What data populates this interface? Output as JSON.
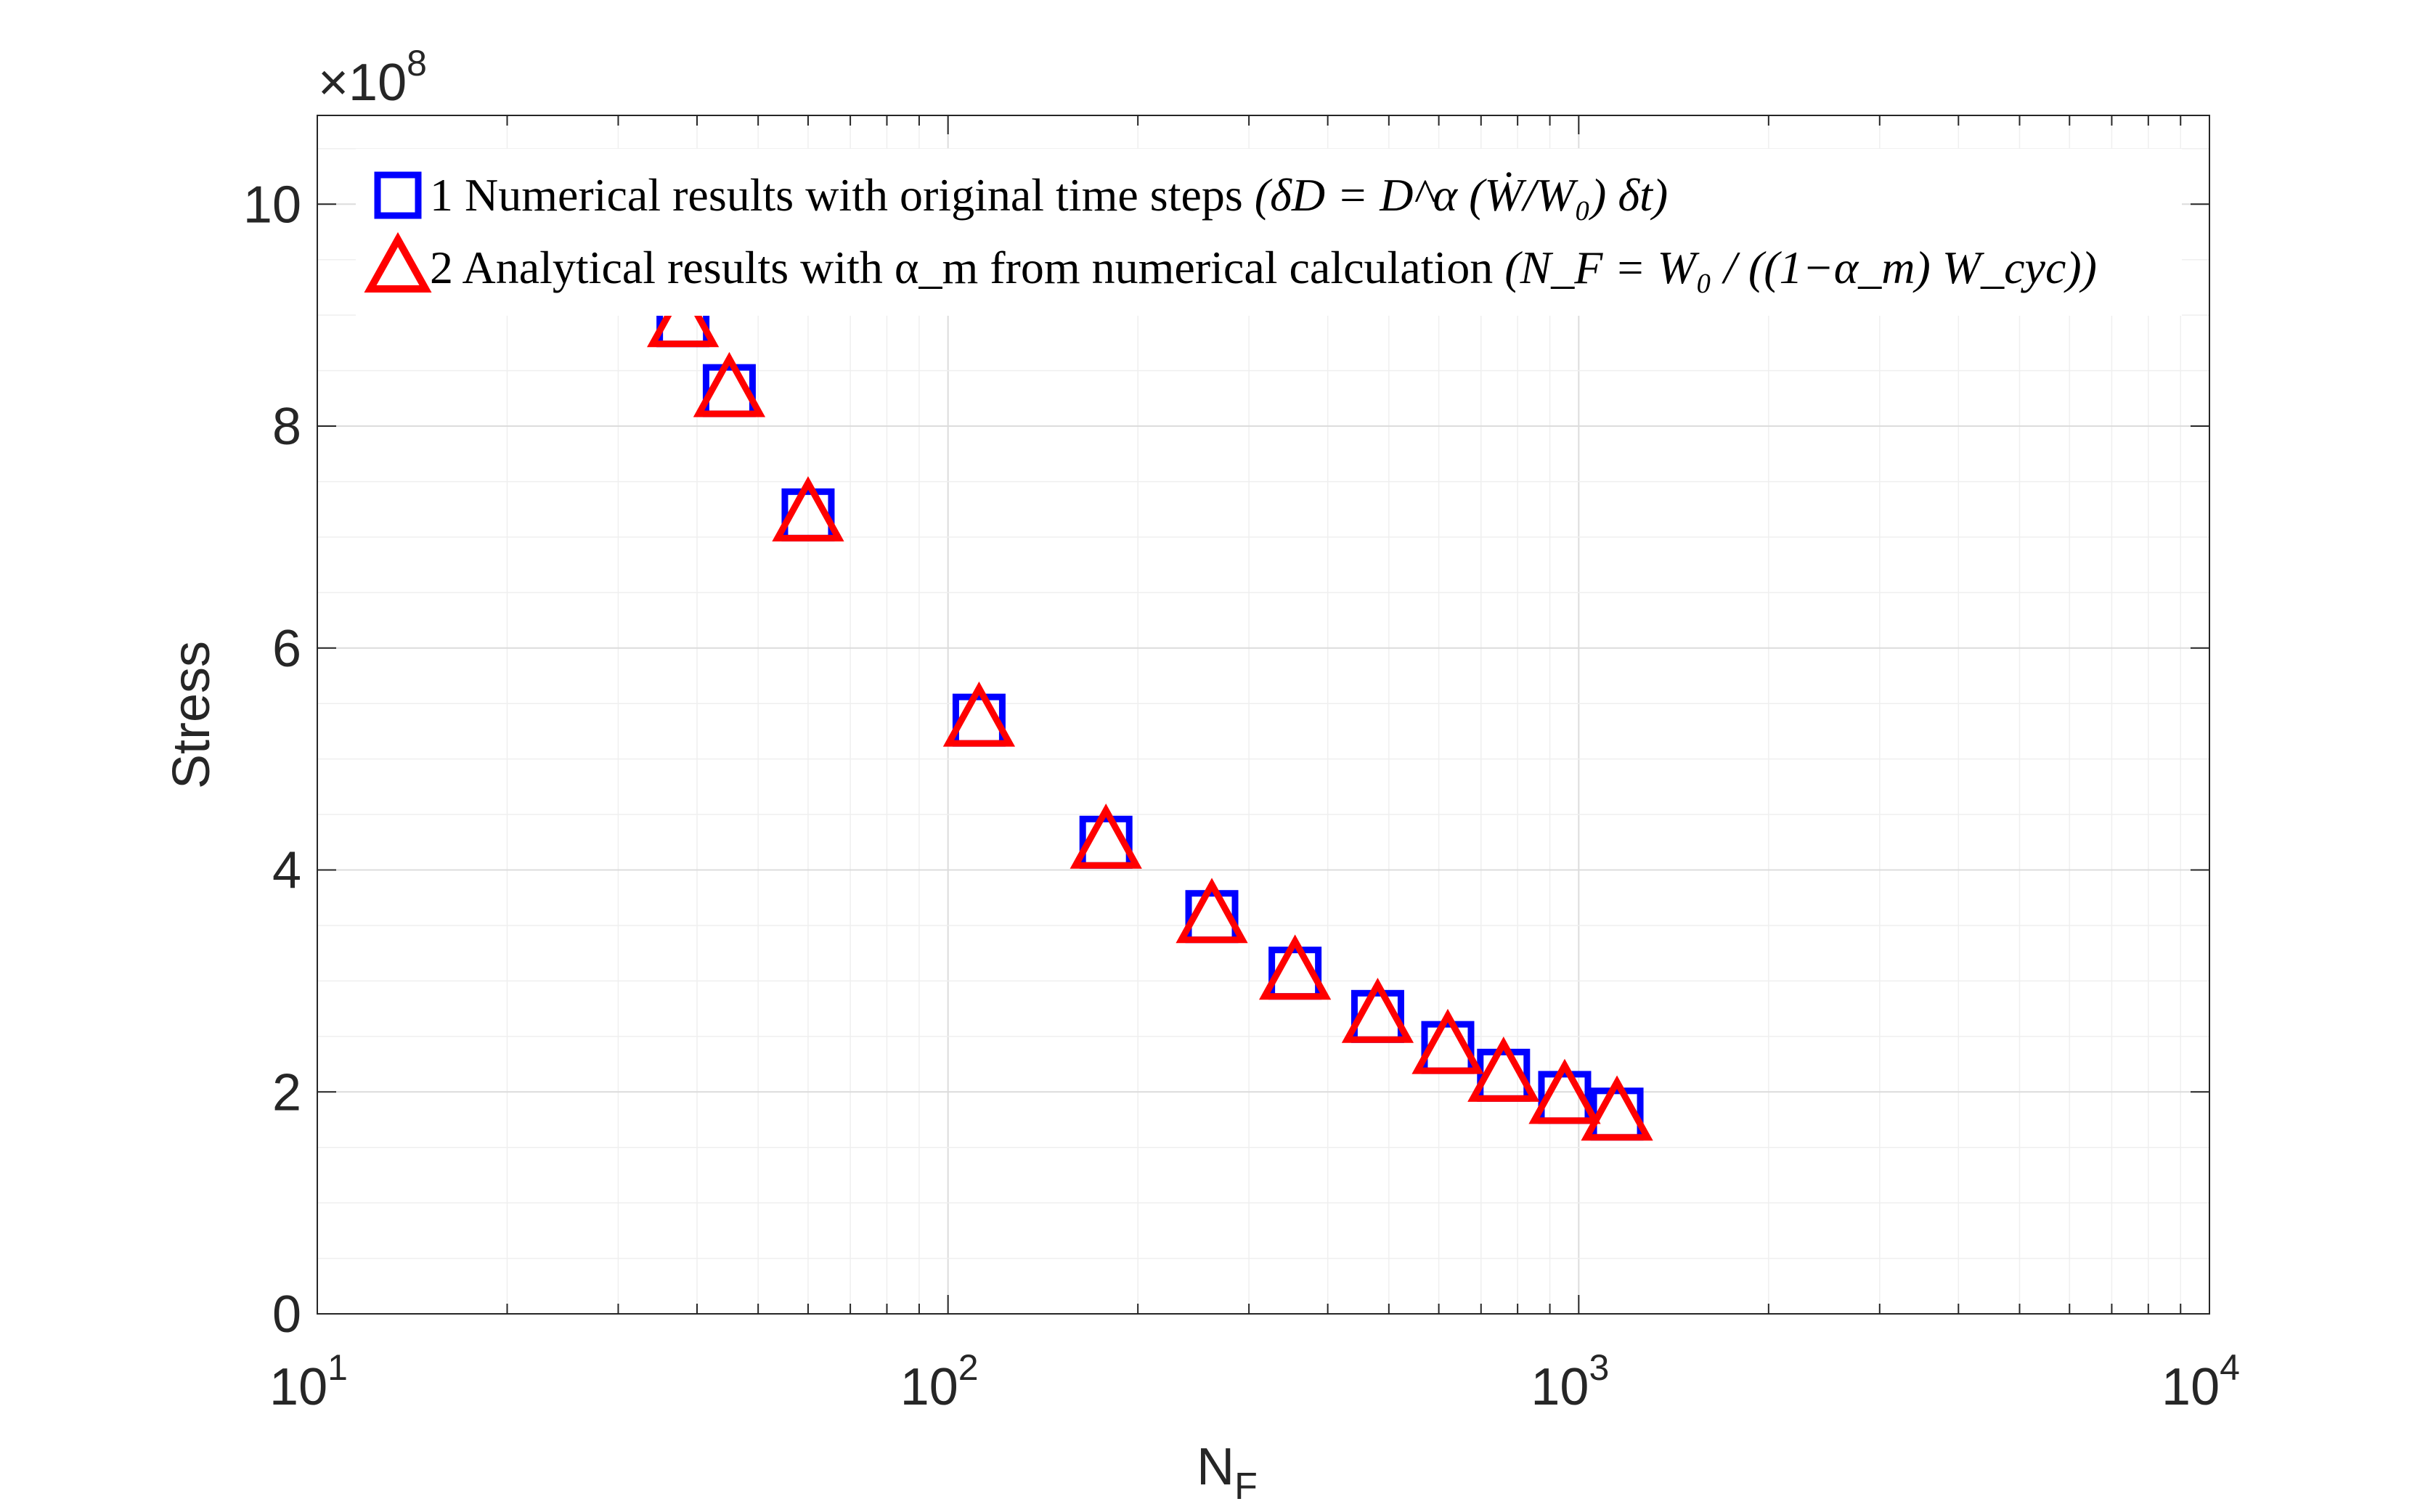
{
  "chart_data": {
    "type": "scatter",
    "xscale": "log",
    "xlabel_main": "N",
    "xlabel_sub": "F",
    "ylabel": "Stress",
    "xlim": [
      10,
      10000
    ],
    "ylim": [
      0,
      1080000000
    ],
    "yexponent": {
      "base": "×10",
      "power": "8"
    },
    "grid": true,
    "legend_position": "top-left",
    "x_ticks": [
      {
        "value": 10,
        "base": "10",
        "power": "1"
      },
      {
        "value": 100,
        "base": "10",
        "power": "2"
      },
      {
        "value": 1000,
        "base": "10",
        "power": "3"
      },
      {
        "value": 10000,
        "base": "10",
        "power": "4"
      }
    ],
    "y_ticks": [
      {
        "value": 0,
        "label": "0"
      },
      {
        "value": 200000000,
        "label": "2"
      },
      {
        "value": 400000000,
        "label": "4"
      },
      {
        "value": 600000000,
        "label": "6"
      },
      {
        "value": 800000000,
        "label": "8"
      },
      {
        "value": 1000000000,
        "label": "10"
      }
    ],
    "series": [
      {
        "name": "1 Numerical results with original time steps",
        "equation": "(δD = D^α (Ẇ/W₀) δt)",
        "marker": "square",
        "color": "#0000ff",
        "x": [
          38,
          45,
          60,
          112,
          178,
          262,
          355,
          480,
          620,
          760,
          950,
          1150
        ],
        "y": [
          895000000,
          832000000,
          720000000,
          535000000,
          425000000,
          358000000,
          307000000,
          268000000,
          240000000,
          215000000,
          195000000,
          180000000
        ]
      },
      {
        "name": "2 Analytical results with α_m from numerical calculation",
        "equation": "(N_F = W₀ / ((1−α_m) W_cyc))",
        "marker": "triangle",
        "color": "#ff0000",
        "x": [
          38,
          45,
          60,
          112,
          178,
          262,
          355,
          480,
          620,
          760,
          950,
          1150
        ],
        "y": [
          895000000,
          832000000,
          720000000,
          535000000,
          425000000,
          358000000,
          307000000,
          268000000,
          240000000,
          215000000,
          195000000,
          180000000
        ]
      }
    ]
  }
}
